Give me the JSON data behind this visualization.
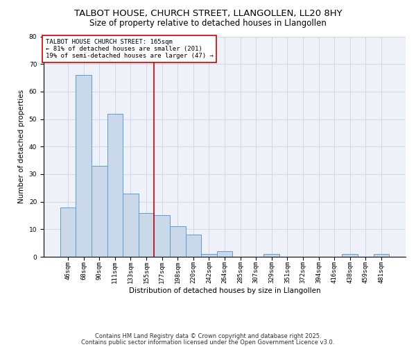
{
  "title1": "TALBOT HOUSE, CHURCH STREET, LLANGOLLEN, LL20 8HY",
  "title2": "Size of property relative to detached houses in Llangollen",
  "xlabel": "Distribution of detached houses by size in Llangollen",
  "ylabel": "Number of detached properties",
  "categories": [
    "46sqm",
    "68sqm",
    "90sqm",
    "111sqm",
    "133sqm",
    "155sqm",
    "177sqm",
    "198sqm",
    "220sqm",
    "242sqm",
    "264sqm",
    "285sqm",
    "307sqm",
    "329sqm",
    "351sqm",
    "372sqm",
    "394sqm",
    "416sqm",
    "438sqm",
    "459sqm",
    "481sqm"
  ],
  "values": [
    18,
    66,
    33,
    52,
    23,
    16,
    15,
    11,
    8,
    1,
    2,
    0,
    0,
    1,
    0,
    0,
    0,
    0,
    1,
    0,
    1
  ],
  "bar_color": "#c9d9ea",
  "bar_edge_color": "#5b9bd5",
  "red_line_x": 5.5,
  "annotation_text": "TALBOT HOUSE CHURCH STREET: 165sqm\n← 81% of detached houses are smaller (201)\n19% of semi-detached houses are larger (47) →",
  "annotation_box_color": "#ffffff",
  "annotation_box_edge": "#cc0000",
  "red_line_color": "#cc0000",
  "ylim": [
    0,
    80
  ],
  "yticks": [
    0,
    10,
    20,
    30,
    40,
    50,
    60,
    70,
    80
  ],
  "grid_color": "#d0d8e8",
  "bg_color": "#eef2f8",
  "footer1": "Contains HM Land Registry data © Crown copyright and database right 2025.",
  "footer2": "Contains public sector information licensed under the Open Government Licence v3.0.",
  "title_fontsize": 9.5,
  "subtitle_fontsize": 8.5,
  "axis_label_fontsize": 7.5,
  "tick_fontsize": 6.5,
  "annotation_fontsize": 6.5,
  "footer_fontsize": 6.0
}
